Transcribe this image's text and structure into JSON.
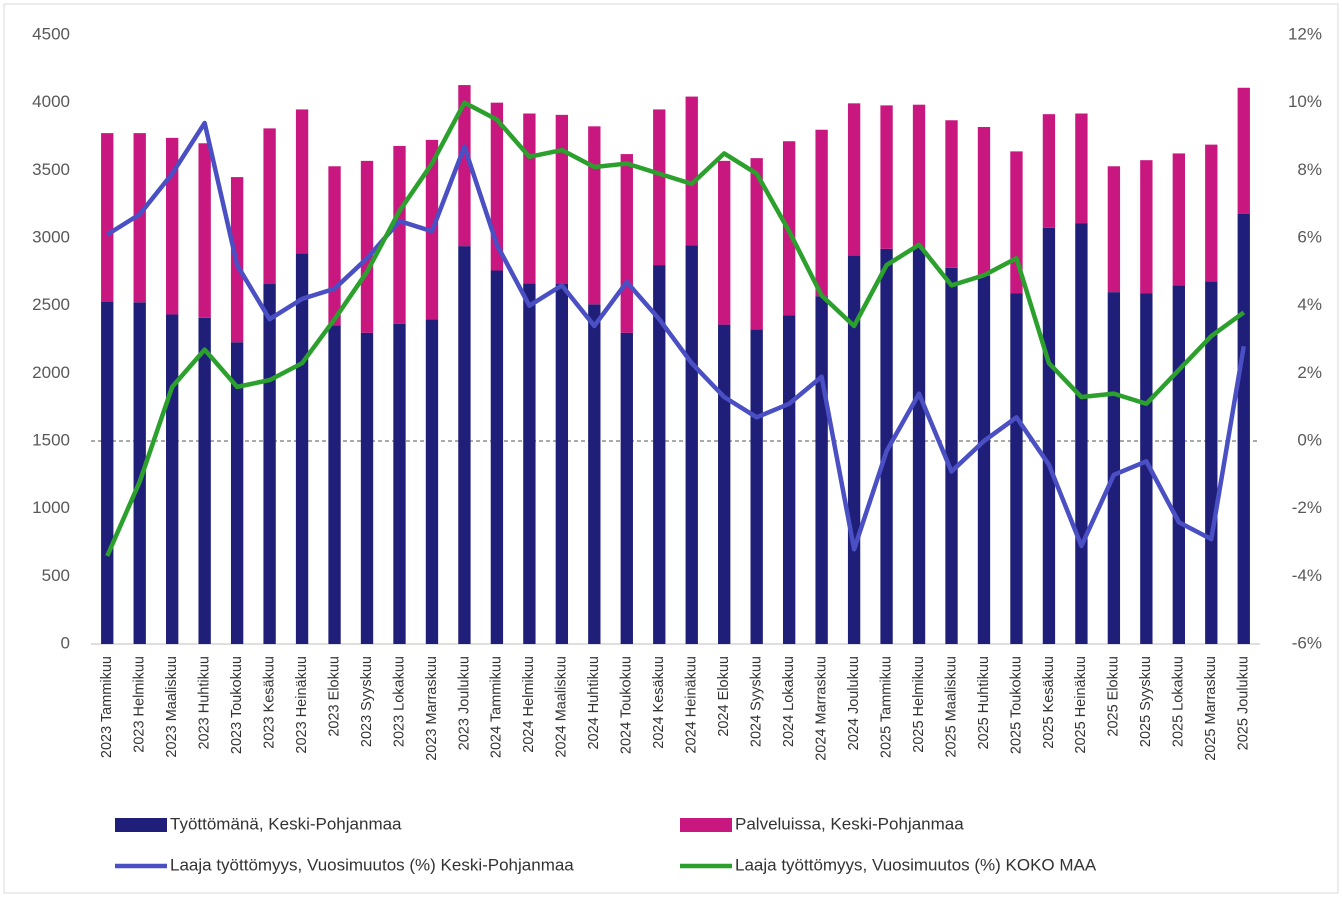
{
  "chart_data": {
    "type": "bar-line",
    "categories": [
      "2023 Tammikuu",
      "2023 Helmikuu",
      "2023 Maaliskuu",
      "2023 Huhtikuu",
      "2023 Toukokuu",
      "2023 Kesäkuu",
      "2023 Heinäkuu",
      "2023 Elokuu",
      "2023 Syyskuu",
      "2023 Lokakuu",
      "2023 Marraskuu",
      "2023 Joulukuu",
      "2024 Tammikuu",
      "2024 Helmikuu",
      "2024 Maaliskuu",
      "2024 Huhtikuu",
      "2024 Toukokuu",
      "2024 Kesäkuu",
      "2024 Heinäkuu",
      "2024 Elokuu",
      "2024 Syyskuu",
      "2024 Lokakuu",
      "2024 Marraskuu",
      "2024 Joulukuu",
      "2025 Tammikuu",
      "2025 Helmikuu",
      "2025 Maaliskuu",
      "2025 Huhtikuu",
      "2025 Toukokuu",
      "2025 Kesäkuu",
      "2025 Heinäkuu",
      "2025 Elokuu",
      "2025 Syyskuu",
      "2025 Lokakuu",
      "2025 Marraskuu",
      "2025 Joulukuu"
    ],
    "series": [
      {
        "name": "Työttömänä, Keski-Pohjanmaa",
        "color": "#1f1f7a",
        "kind": "bar",
        "values": [
          2530,
          2525,
          2435,
          2410,
          2230,
          2660,
          2885,
          2355,
          2300,
          2365,
          2400,
          2940,
          2760,
          2665,
          2660,
          2510,
          2300,
          2800,
          2945,
          2360,
          2325,
          2430,
          2570,
          2870,
          2920,
          2930,
          2780,
          2720,
          2590,
          3075,
          3110,
          2600,
          2590,
          2650,
          2680,
          3180
        ]
      },
      {
        "name": "Palveluissa, Keski-Pohjanmaa",
        "color": "#c8177f",
        "kind": "bar",
        "values": [
          1245,
          1250,
          1305,
          1290,
          1220,
          1150,
          1065,
          1175,
          1270,
          1315,
          1325,
          1190,
          1240,
          1255,
          1250,
          1315,
          1320,
          1150,
          1100,
          1210,
          1265,
          1285,
          1230,
          1125,
          1060,
          1055,
          1090,
          1100,
          1050,
          840,
          810,
          930,
          985,
          975,
          1010,
          930
        ]
      },
      {
        "name": "Laaja työttömyys, Vuosimuutos (%) Keski-Pohjanmaa",
        "color": "#4a4fc4",
        "kind": "line",
        "axis": "y2",
        "values": [
          6.1,
          6.7,
          7.9,
          9.4,
          5.2,
          3.6,
          4.2,
          4.5,
          5.4,
          6.5,
          6.2,
          8.7,
          5.8,
          4.0,
          4.6,
          3.4,
          4.7,
          3.6,
          2.3,
          1.3,
          0.7,
          1.1,
          1.9,
          -3.2,
          -0.3,
          1.4,
          -0.9,
          0.0,
          0.7,
          -0.7,
          -3.1,
          -1.0,
          -0.6,
          -2.4,
          -2.9,
          2.8
        ]
      },
      {
        "name": "Laaja työttömyys, Vuosimuutos (%)  KOKO MAA",
        "color": "#2ca02c",
        "kind": "line",
        "axis": "y2",
        "values": [
          -3.4,
          -1.2,
          1.6,
          2.7,
          1.6,
          1.8,
          2.3,
          3.6,
          5.0,
          6.8,
          8.2,
          10.0,
          9.5,
          8.4,
          8.6,
          8.1,
          8.2,
          7.9,
          7.6,
          8.5,
          7.9,
          6.2,
          4.3,
          3.4,
          5.2,
          5.8,
          4.6,
          4.9,
          5.4,
          2.3,
          1.3,
          1.4,
          1.1,
          2.1,
          3.1,
          3.8
        ]
      }
    ],
    "ylim": [
      0,
      4500
    ],
    "yticks": [
      0,
      500,
      1000,
      1500,
      2000,
      2500,
      3000,
      3500,
      4000,
      4500
    ],
    "y2lim": [
      -6,
      12
    ],
    "y2ticks": [
      {
        "value": -6,
        "label": "-6%"
      },
      {
        "value": -4,
        "label": "-4%"
      },
      {
        "value": -2,
        "label": "-2%"
      },
      {
        "value": 0,
        "label": "0%"
      },
      {
        "value": 2,
        "label": "2%"
      },
      {
        "value": 4,
        "label": "4%"
      },
      {
        "value": 6,
        "label": "6%"
      },
      {
        "value": 8,
        "label": "8%"
      },
      {
        "value": 10,
        "label": "10%"
      },
      {
        "value": 12,
        "label": "12%"
      }
    ],
    "grid": false,
    "legend": "bottom"
  }
}
